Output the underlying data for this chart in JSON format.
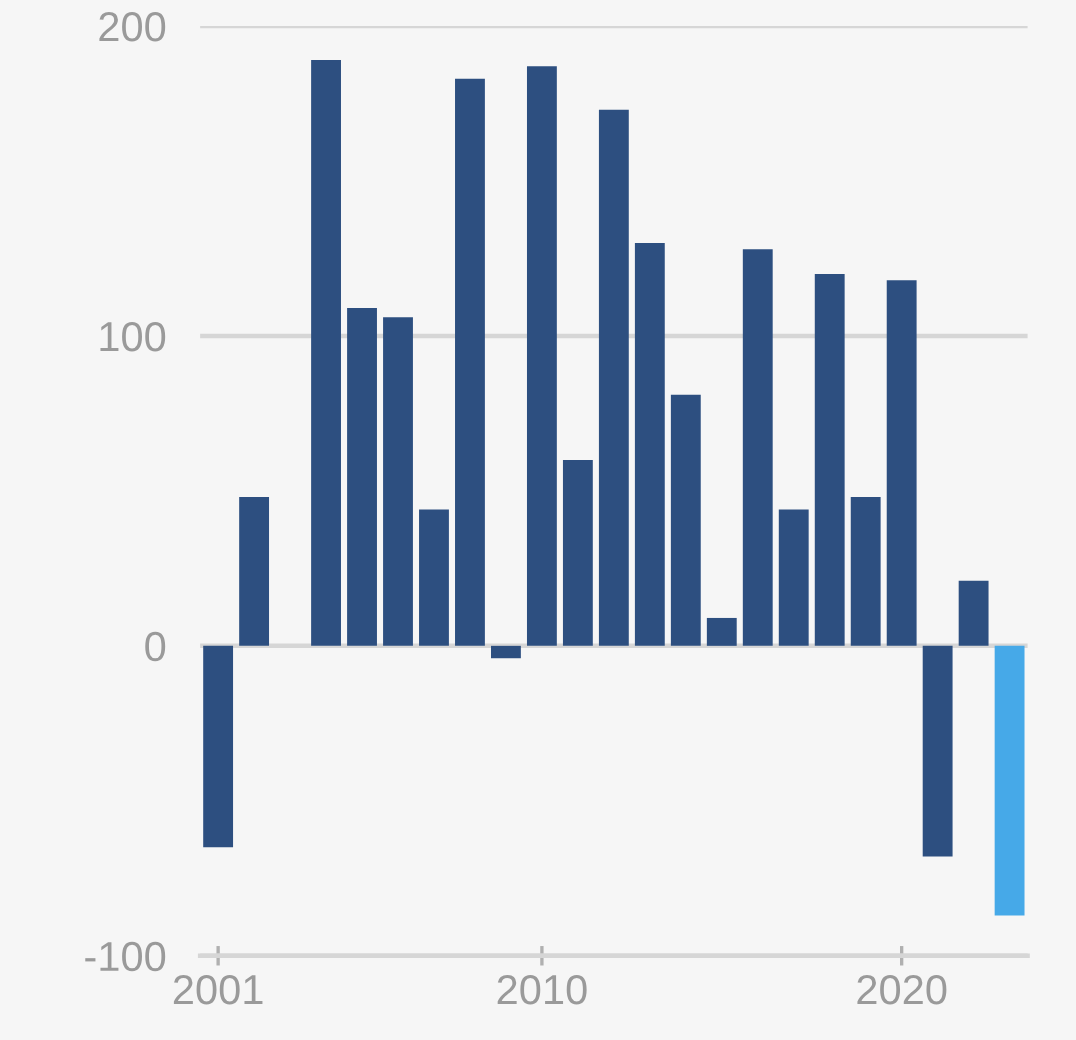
{
  "chart_data": {
    "type": "bar",
    "x": [
      2001,
      2002,
      2003,
      2004,
      2005,
      2006,
      2007,
      2008,
      2009,
      2010,
      2011,
      2012,
      2013,
      2014,
      2015,
      2016,
      2017,
      2018,
      2019,
      2020,
      2021,
      2022,
      2023
    ],
    "values": [
      -65,
      48,
      0,
      189,
      109,
      106,
      44,
      183,
      -4,
      187,
      60,
      173,
      130,
      81,
      9,
      128,
      44,
      120,
      48,
      118,
      -68,
      21,
      -87
    ],
    "colors": [
      "#2d4f80",
      "#2d4f80",
      "#2d4f80",
      "#2d4f80",
      "#2d4f80",
      "#2d4f80",
      "#2d4f80",
      "#2d4f80",
      "#2d4f80",
      "#2d4f80",
      "#2d4f80",
      "#2d4f80",
      "#2d4f80",
      "#2d4f80",
      "#2d4f80",
      "#2d4f80",
      "#2d4f80",
      "#2d4f80",
      "#2d4f80",
      "#2d4f80",
      "#2d4f80",
      "#2d4f80",
      "#46a9e8"
    ],
    "xlim": [
      2000.5,
      2023.5
    ],
    "xticks": [
      2001,
      2010,
      2020
    ],
    "ylim": [
      -100,
      200
    ],
    "yticks": [
      -100,
      0,
      100,
      200
    ],
    "grid": "y"
  }
}
